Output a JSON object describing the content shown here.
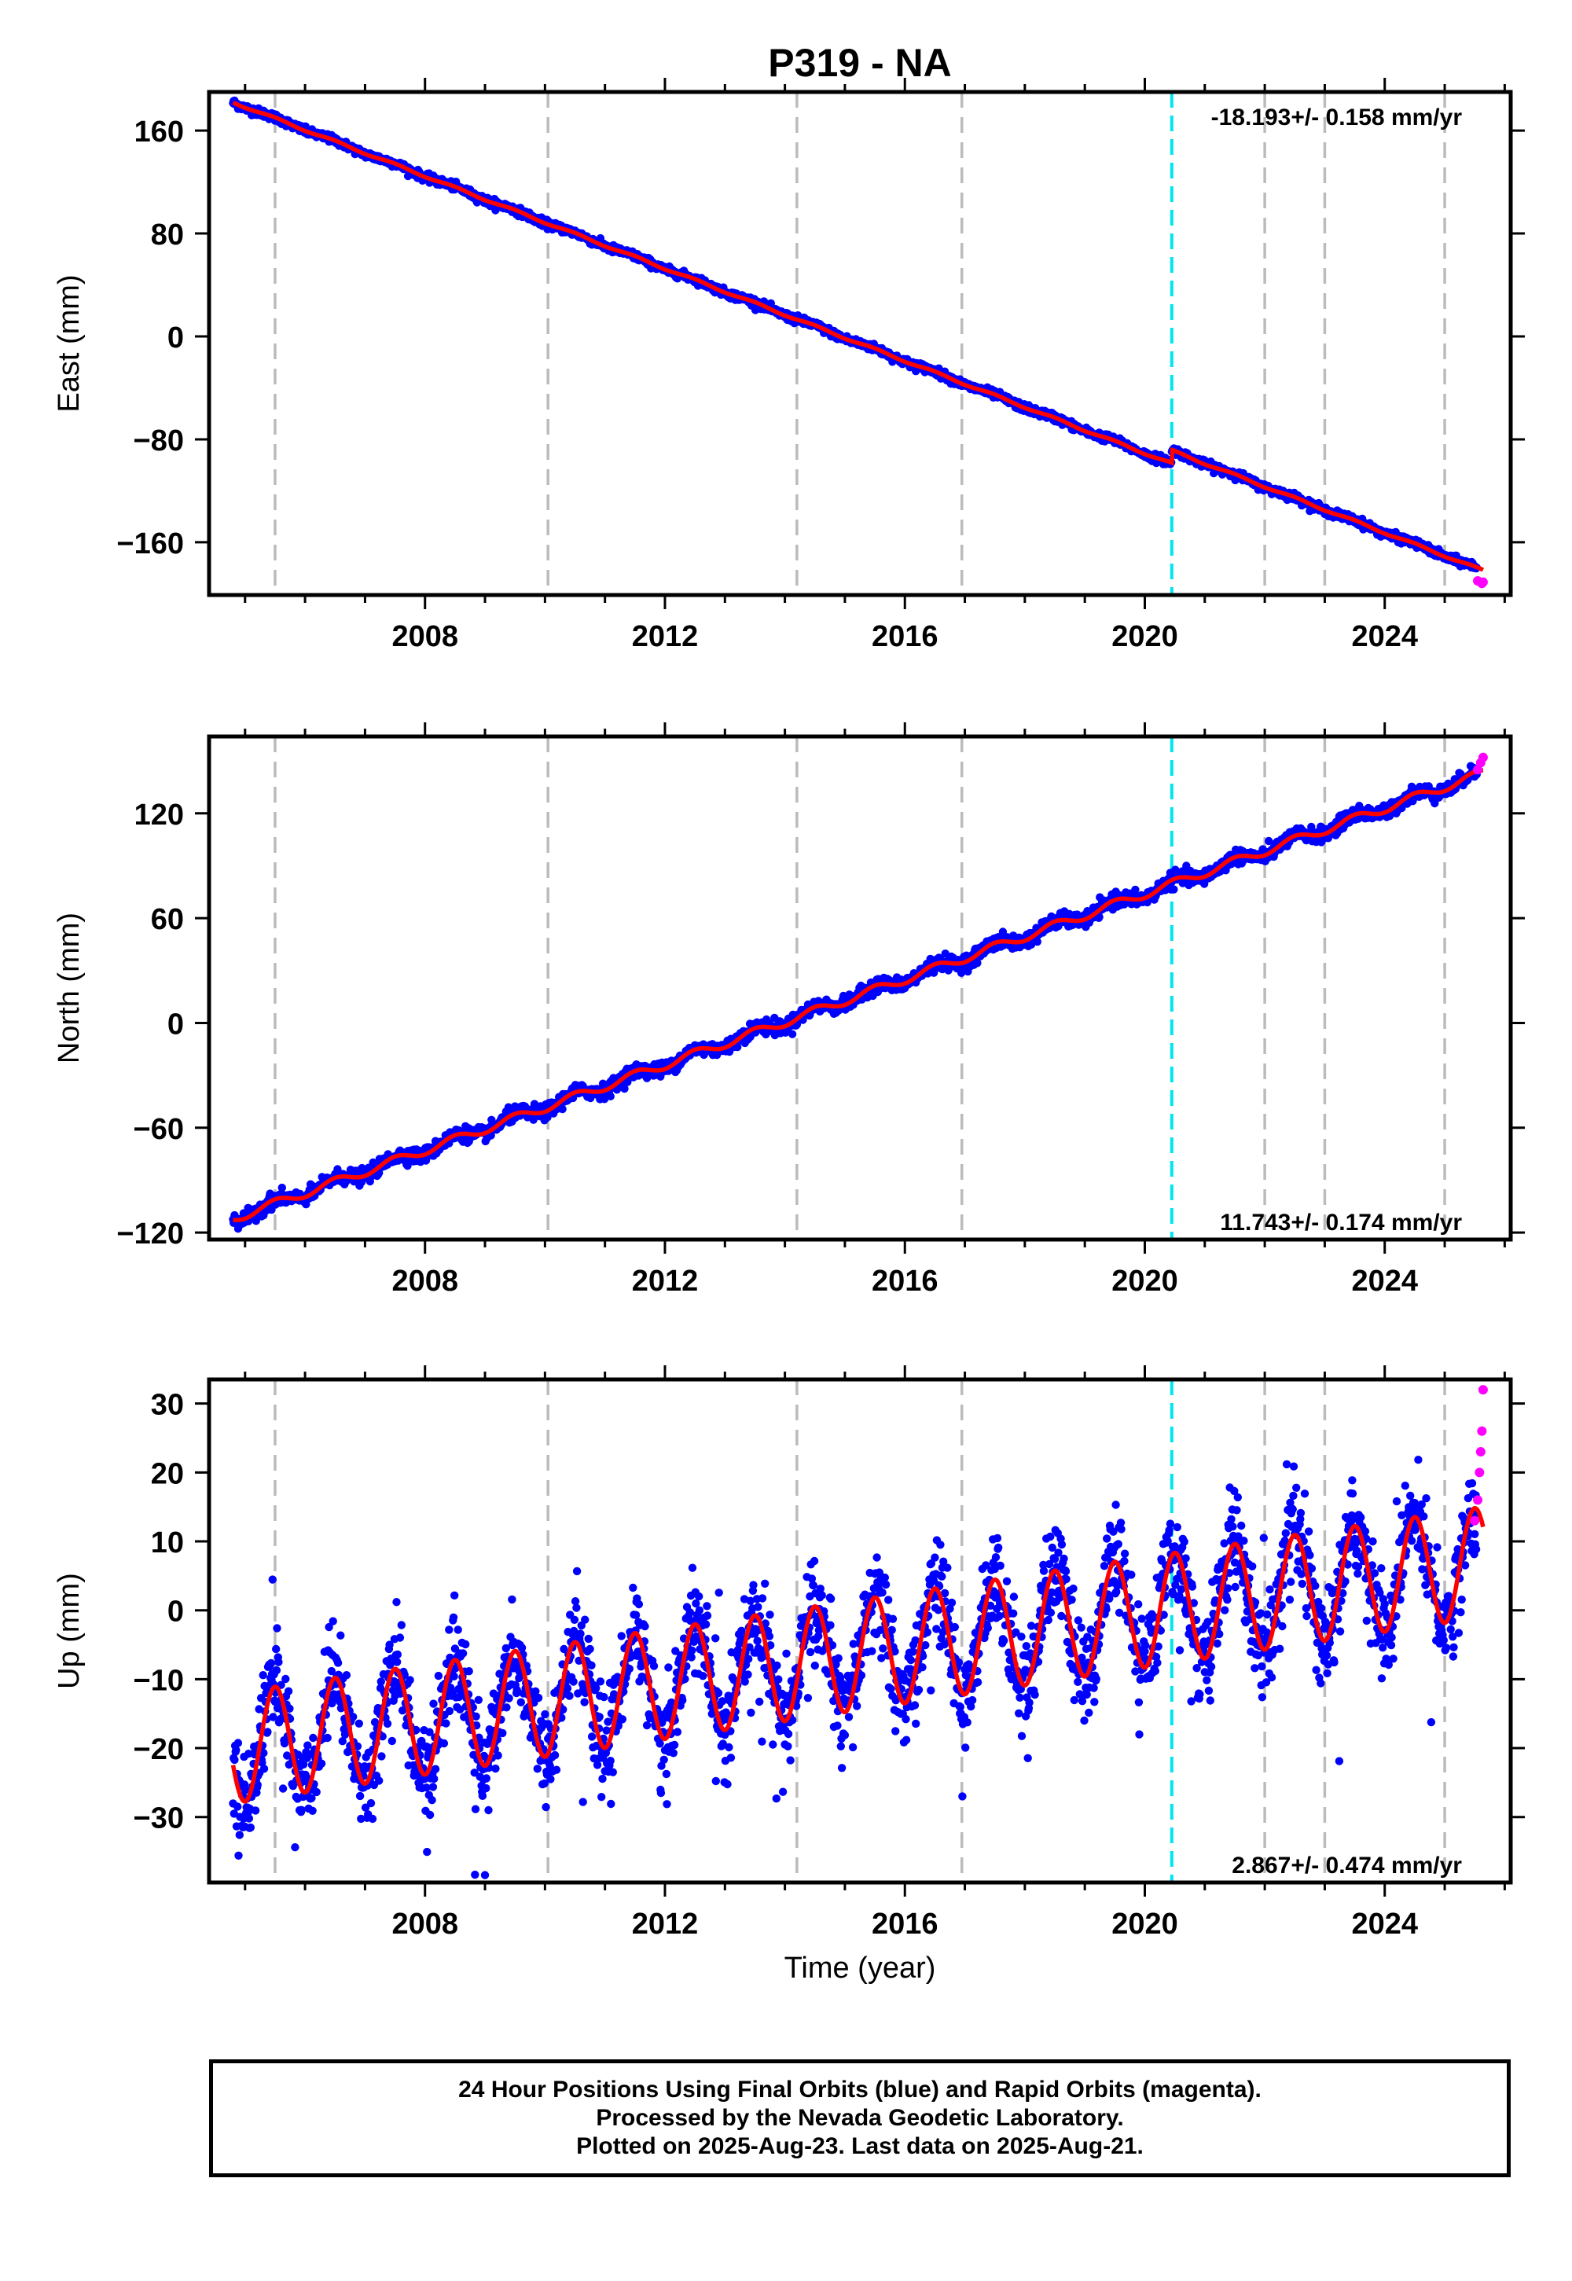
{
  "title": "P319 - NA",
  "xlabel": "Time (year)",
  "colors": {
    "final_orbits": "#0000ff",
    "rapid_orbits": "#ff00ff",
    "model": "#ff0000",
    "event_line": "#00e5ee",
    "equipment_lines": "#bbbbbb"
  },
  "footer": {
    "line1": "24 Hour Positions Using Final Orbits (blue) and Rapid Orbits (magenta).",
    "line2": "Processed by the Nevada Geodetic Laboratory.",
    "line3": "Plotted on 2025-Aug-23. Last data on 2025-Aug-21."
  },
  "chart_data": [
    {
      "type": "scatter",
      "panel": "east",
      "ylabel": "East (mm)",
      "rate_label": "-18.193+/- 0.158 mm/yr",
      "rate_label_position": "top-right",
      "xlim": [
        2004.4,
        2026.1
      ],
      "ylim": [
        -201,
        190
      ],
      "xticks": [
        2008,
        2012,
        2016,
        2020,
        2024
      ],
      "yticks": [
        160,
        80,
        0,
        -80,
        -160
      ],
      "ytick_labels": [
        "160",
        "80",
        "0",
        "−80",
        "−160"
      ],
      "grid": false,
      "series": [
        {
          "values": {
            "start_year": 2004.8,
            "end_year": 2025.64,
            "start_mm": 182,
            "end_mm": -192
          }
        }
      ],
      "offsets": [
        {
          "year": 2020.45,
          "mm": 10
        }
      ],
      "seasonal_amplitude_mm": 0.8,
      "scatter_mm": 1.5,
      "rapid_points": [
        [
          2025.55,
          -190
        ],
        [
          2025.62,
          -192
        ],
        [
          2025.64,
          -191
        ]
      ],
      "equipment_changes": [
        2005.5,
        2010.05,
        2014.2,
        2016.95,
        2022.0,
        2023.0,
        2025.0
      ],
      "event_lines": [
        2020.45
      ]
    },
    {
      "type": "scatter",
      "panel": "north",
      "ylabel": "North (mm)",
      "rate_label": "11.743+/- 0.174 mm/yr",
      "rate_label_position": "bottom-right",
      "xlim": [
        2004.4,
        2026.1
      ],
      "ylim": [
        -124,
        164
      ],
      "xticks": [
        2008,
        2012,
        2016,
        2020,
        2024
      ],
      "yticks": [
        120,
        60,
        0,
        -60,
        -120
      ],
      "ytick_labels": [
        "120",
        "60",
        "0",
        "−60",
        "−120"
      ],
      "grid": false,
      "series": [
        {
          "values": {
            "start_year": 2004.8,
            "end_year": 2025.64,
            "start_mm": -112,
            "end_mm": 143
          }
        }
      ],
      "offsets": [],
      "seasonal_amplitude_mm": 2.5,
      "scatter_mm": 2.0,
      "rapid_points": [
        [
          2025.55,
          145
        ],
        [
          2025.6,
          149
        ],
        [
          2025.64,
          152
        ]
      ],
      "equipment_changes": [
        2005.5,
        2010.05,
        2014.2,
        2016.95,
        2022.0,
        2023.0,
        2025.0
      ],
      "event_lines": [
        2020.45
      ]
    },
    {
      "type": "scatter",
      "panel": "up",
      "ylabel": "Up (mm)",
      "rate_label": "2.867+/- 0.474 mm/yr",
      "rate_label_position": "bottom-right",
      "xlim": [
        2004.4,
        2026.1
      ],
      "ylim": [
        -39.5,
        33.5
      ],
      "xticks": [
        2008,
        2012,
        2016,
        2020,
        2024
      ],
      "yticks": [
        30,
        20,
        10,
        0,
        -10,
        -20,
        -30
      ],
      "ytick_labels": [
        "30",
        "20",
        "10",
        "0",
        "−10",
        "−20",
        "−30"
      ],
      "grid": false,
      "series": [
        {
          "values": {
            "start_year": 2004.8,
            "end_year": 2025.64,
            "start_mm": -20,
            "end_mm": 7
          }
        }
      ],
      "offsets": [],
      "seasonal_amplitude_mm": 8,
      "scatter_mm": 3.5,
      "rapid_points": [
        [
          2025.5,
          13
        ],
        [
          2025.55,
          16
        ],
        [
          2025.58,
          20
        ],
        [
          2025.6,
          23
        ],
        [
          2025.62,
          26
        ],
        [
          2025.64,
          32
        ]
      ],
      "equipment_changes": [
        2005.5,
        2010.05,
        2014.2,
        2016.95,
        2022.0,
        2023.0,
        2025.0
      ],
      "event_lines": [
        2020.45
      ]
    }
  ]
}
